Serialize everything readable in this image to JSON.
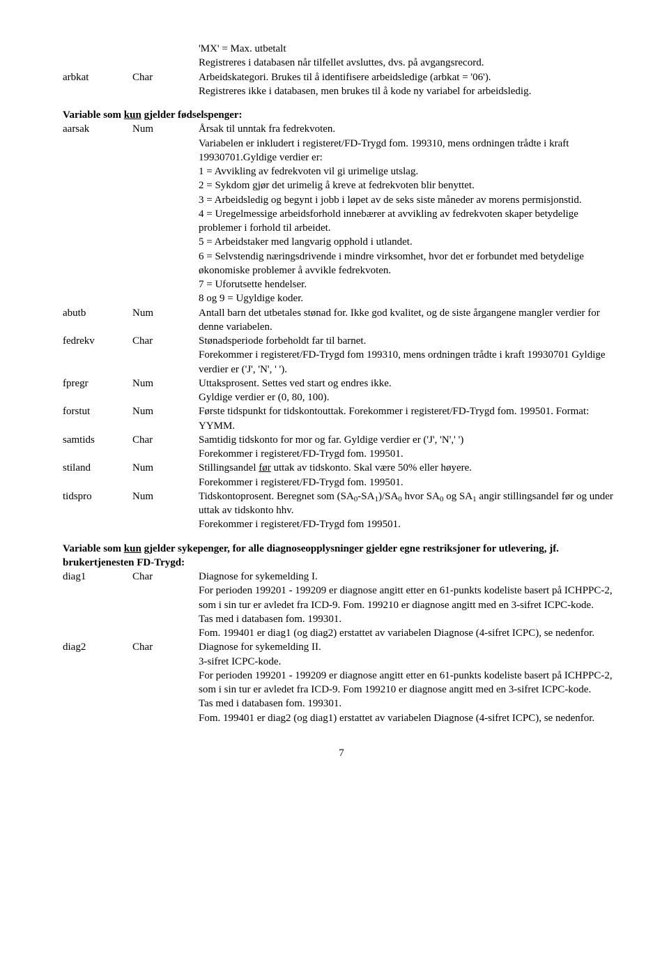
{
  "entry_arbkat": {
    "var": "arbkat",
    "type": "Char",
    "pre1": "'MX' = Max. utbetalt",
    "pre2": "Registreres i databasen når tilfellet avsluttes, dvs. på avgangsrecord.",
    "line1": "Arbeidskategori. Brukes til å identifisere arbeidsledige (arbkat = '06').",
    "line2": "Registreres ikke i databasen, men brukes til å kode ny variabel for arbeidsledig."
  },
  "section_fodsel": {
    "head_pre": "Variable som ",
    "head_ul": "kun",
    "head_post": " gjelder fødselspenger:"
  },
  "entry_aarsak": {
    "var": "aarsak",
    "type": "Num",
    "l1": "Årsak til unntak fra fedrekvoten.",
    "l2": "Variabelen er inkludert i registeret/FD-Trygd fom. 199310, mens ordningen trådte i kraft 19930701.Gyldige verdier er:",
    "v1": "1 = Avvikling av fedrekvoten vil gi urimelige utslag.",
    "v2": "2 = Sykdom gjør det urimelig å kreve at fedrekvoten blir benyttet.",
    "v3": "3 = Arbeidsledig og begynt i jobb i løpet av de seks siste måneder av morens permisjonstid.",
    "v4": "4 = Uregelmessige arbeidsforhold innebærer at avvikling av fedrekvoten skaper betydelige problemer i forhold til arbeidet.",
    "v5": "5 = Arbeidstaker med langvarig opphold i utlandet.",
    "v6": "6 = Selvstendig næringsdrivende i mindre virksomhet, hvor det er forbundet med betydelige økonomiske problemer å avvikle fedrekvoten.",
    "v7": "7 = Uforutsette hendelser.",
    "v8": "8 og 9 = Ugyldige koder."
  },
  "entry_abutb": {
    "var": "abutb",
    "type": "Num",
    "desc": "Antall barn det utbetales stønad for. Ikke god kvalitet, og de siste årgangene mangler verdier for denne variabelen."
  },
  "entry_fedrekv": {
    "var": "fedrekv",
    "type": "Char",
    "l1": "Stønadsperiode forbeholdt far til barnet.",
    "l2": "Forekommer i registeret/FD-Trygd fom 199310, mens ordningen trådte i kraft 19930701 Gyldige verdier er ('J', 'N', ' ')."
  },
  "entry_fpregr": {
    "var": "fpregr",
    "type": "Num",
    "l1": "Uttaksprosent. Settes ved start og endres ikke.",
    "l2": "Gyldige verdier er (0, 80, 100)."
  },
  "entry_forstut": {
    "var": "forstut",
    "type": "Num",
    "desc": "Første tidspunkt for tidskontouttak. Forekommer i registeret/FD-Trygd fom. 199501. Format: YYMM."
  },
  "entry_samtids": {
    "var": "samtids",
    "type": "Char",
    "l1": "Samtidig tidskonto for mor og far. Gyldige verdier er ('J', 'N',' ')",
    "l2": "Forekommer i registeret/FD-Trygd fom. 199501."
  },
  "entry_stiland": {
    "var": "stiland",
    "type": "Num",
    "l1a": "Stillingsandel ",
    "l1ul": "før",
    "l1b": " uttak av tidskonto. Skal være 50% eller høyere.",
    "l2": "Forekommer i registeret/FD-Trygd fom. 199501."
  },
  "entry_tidspro": {
    "var": "tidspro",
    "type": "Num",
    "pre": "Tidskontoprosent. Beregnet som (SA",
    "zero1": "0",
    "dash": "-SA",
    "one1": "1",
    "slash": ")/SA",
    "zero2": "0",
    "mid": " hvor SA",
    "zero3": "0",
    "og": " og SA",
    "one2": "1",
    "post": " angir stillingsandel før og under uttak av tidskonto hhv.",
    "l2": "Forekommer i registeret/FD-Trygd fom 199501."
  },
  "section_syk": {
    "head_pre": "Variable som ",
    "head_ul": "kun",
    "head_post": " gjelder sykepenger, for alle diagnoseopplysninger gjelder egne restriksjoner for utlevering, jf. brukertjenesten FD-Trygd:"
  },
  "entry_diag1": {
    "var": "diag1",
    "type": "Char",
    "l1": "Diagnose for sykemelding I.",
    "l2": "For perioden 199201 - 199209 er diagnose angitt etter en 61-punkts kodeliste basert på ICHPPC-2, som i sin tur er avledet fra ICD-9. Fom. 199210 er diagnose angitt med en 3-sifret ICPC-kode.",
    "l3": "Tas med i databasen fom. 199301.",
    "l4": "Fom. 199401 er diag1 (og diag2) erstattet av variabelen Diagnose (4-sifret ICPC), se nedenfor."
  },
  "entry_diag2": {
    "var": "diag2",
    "type": "Char",
    "l1": "Diagnose for sykemelding II.",
    "l2": "3-sifret ICPC-kode.",
    "l3": "For perioden 199201 - 199209 er diagnose angitt etter en 61-punkts kodeliste basert på ICHPPC-2, som i sin tur er avledet fra ICD-9. Fom 199210 er diagnose angitt med en 3-sifret ICPC-kode.",
    "l4": "Tas med i databasen fom. 199301.",
    "l5": "Fom. 199401 er diag2 (og diag1) erstattet av variabelen Diagnose (4-sifret ICPC), se nedenfor."
  },
  "page": "7"
}
